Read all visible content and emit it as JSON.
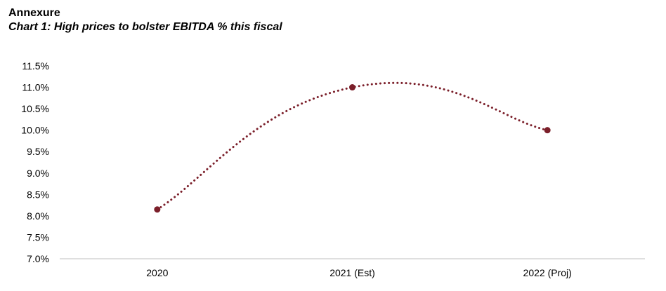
{
  "annexure": "Annexure",
  "chart_title": "Chart 1: High prices to bolster EBITDA % this fiscal",
  "chart_data": {
    "type": "line",
    "title": "Chart 1: High prices to bolster EBITDA % this fiscal",
    "xlabel": "",
    "ylabel": "",
    "categories": [
      "2020",
      "2021 (Est)",
      "2022 (Proj)"
    ],
    "series": [
      {
        "name": "EBITDA %",
        "values": [
          8.15,
          11.0,
          10.0
        ]
      }
    ],
    "ylim": [
      7.0,
      11.5
    ],
    "yticks": [
      "7.0%",
      "7.5%",
      "8.0%",
      "8.5%",
      "9.0%",
      "9.5%",
      "10.0%",
      "10.5%",
      "11.0%",
      "11.5%"
    ],
    "ytick_values": [
      7.0,
      7.5,
      8.0,
      8.5,
      9.0,
      9.5,
      10.0,
      10.5,
      11.0,
      11.5
    ],
    "grid": false,
    "legend": "none",
    "line_style": "dotted-smoothed",
    "line_color": "#7b1f2a",
    "axis_color": "#bfbfbf"
  }
}
